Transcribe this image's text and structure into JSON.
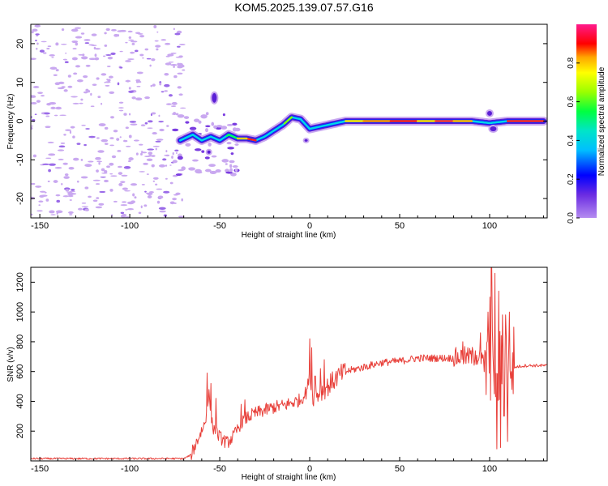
{
  "title": "KOM5.2025.139.07.57.G16",
  "colors": {
    "snr_line": "#e8403a",
    "spectrogram_scatter": "#c9a8f0",
    "colorbar_stops": [
      "#8a2be2",
      "#0000ff",
      "#00bfff",
      "#00ff7f",
      "#7fff00",
      "#ffff00",
      "#ffa500",
      "#ff0000",
      "#ff1493"
    ]
  },
  "chart_data": [
    {
      "type": "heatmap",
      "name": "spectrogram",
      "xlabel": "Height of straight line (km)",
      "ylabel": "Frequency (Hz)",
      "xlim": [
        -155,
        132
      ],
      "ylim": [
        -25,
        25
      ],
      "xticks": [
        -150,
        -100,
        -50,
        0,
        50,
        100
      ],
      "yticks": [
        -20,
        -10,
        0,
        10,
        20
      ],
      "colorbar": {
        "label": "Normalized spectral amplitude",
        "ticks": [
          "0.0",
          "0.2",
          "0.4",
          "0.6",
          "0.8"
        ],
        "range": [
          0,
          1
        ]
      },
      "ridge": {
        "x": [
          -72,
          -65,
          -60,
          -55,
          -50,
          -45,
          -40,
          -35,
          -30,
          -25,
          -20,
          -15,
          -10,
          -5,
          0,
          5,
          10,
          15,
          20,
          30,
          40,
          50,
          60,
          70,
          80,
          90,
          100,
          110,
          120,
          130
        ],
        "y": [
          -5,
          -3.5,
          -5,
          -4,
          -5,
          -3.5,
          -4.5,
          -4.5,
          -5,
          -4,
          -2.5,
          -1,
          1,
          0.5,
          -2,
          -1.5,
          -1,
          -0.5,
          0,
          0,
          0,
          0,
          0,
          0,
          0,
          0,
          -0.5,
          0,
          0,
          0
        ]
      }
    },
    {
      "type": "line",
      "name": "snr",
      "xlabel": "Height of straight line (km)",
      "ylabel": "SNR (v/v)",
      "xlim": [
        -155,
        132
      ],
      "ylim": [
        0,
        1300
      ],
      "xticks": [
        -150,
        -100,
        -50,
        0,
        50,
        100
      ],
      "yticks": [
        200,
        400,
        600,
        800,
        1000,
        1200
      ],
      "envelope": {
        "x": [
          -155,
          -70,
          -66,
          -62,
          -58,
          -56,
          -54,
          -50,
          -46,
          -42,
          -38,
          -35,
          -30,
          -25,
          -20,
          -15,
          -10,
          -5,
          -2,
          0,
          2,
          5,
          10,
          15,
          20,
          30,
          40,
          50,
          60,
          70,
          80,
          85,
          90,
          95,
          98,
          100,
          102,
          104,
          106,
          108,
          110,
          112,
          114,
          120,
          132
        ],
        "y": [
          15,
          15,
          40,
          150,
          260,
          450,
          230,
          160,
          120,
          170,
          260,
          290,
          320,
          340,
          360,
          370,
          390,
          410,
          460,
          560,
          430,
          450,
          500,
          560,
          600,
          630,
          660,
          670,
          690,
          690,
          690,
          700,
          700,
          700,
          600,
          560,
          700,
          560,
          620,
          620,
          700,
          700,
          630,
          640,
          640
        ]
      },
      "spikes": {
        "x": [
          -57,
          -55,
          -52,
          -38,
          -36,
          0,
          1,
          3,
          6,
          8,
          85,
          88,
          92,
          95,
          99,
          100,
          101,
          102,
          103,
          104,
          105,
          106,
          107,
          108,
          109,
          110,
          111,
          112
        ],
        "y": [
          590,
          520,
          420,
          380,
          410,
          820,
          760,
          570,
          620,
          680,
          800,
          760,
          740,
          860,
          1000,
          1100,
          1300,
          700,
          1260,
          80,
          1140,
          90,
          980,
          300,
          980,
          130,
          1000,
          600
        ]
      }
    }
  ]
}
